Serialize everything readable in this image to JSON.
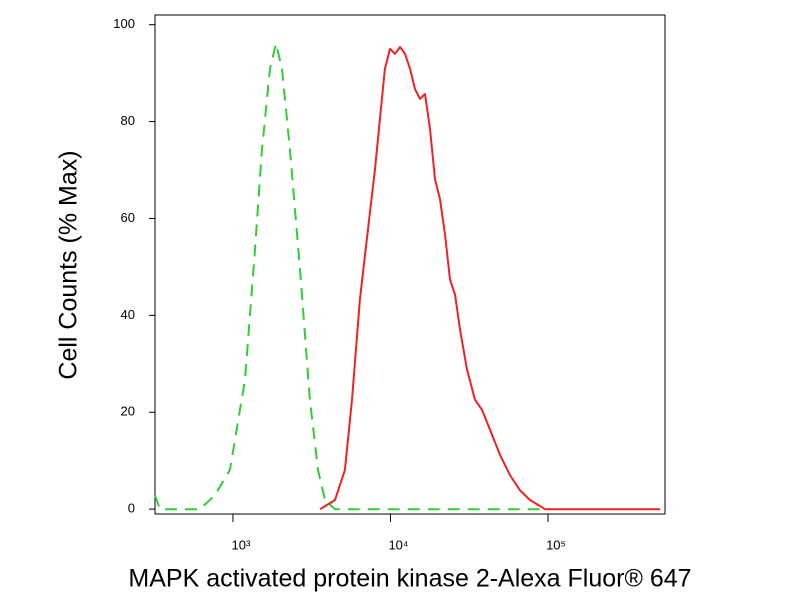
{
  "chart_data": {
    "type": "line",
    "xlabel": "MAPK activated protein kinase 2-Alexa Fluor® 647",
    "ylabel": "Cell Counts (% Max)",
    "xscale": "log",
    "xlim": [
      320,
      553000
    ],
    "ylim": [
      -1,
      102
    ],
    "xticks": [
      {
        "value": 1000,
        "label": "10³"
      },
      {
        "value": 10000,
        "label": "10⁴"
      },
      {
        "value": 100000,
        "label": "10⁵"
      }
    ],
    "yticks": [
      0,
      20,
      40,
      60,
      80,
      100
    ],
    "series": [
      {
        "color": "#33cc33",
        "linestyle": "dashed",
        "x": [
          320,
          344,
          617,
          769,
          957,
          1192,
          1380,
          1528,
          1718,
          1876,
          2048,
          2300,
          2663,
          3080,
          3467,
          3838,
          4443,
          103000
        ],
        "values": [
          2.9,
          0,
          0,
          2.9,
          8.1,
          26.7,
          53.6,
          74.3,
          90.9,
          96.1,
          90.9,
          74.3,
          49.5,
          22.6,
          8.1,
          1.9,
          0,
          0
        ]
      },
      {
        "color": "#ee2222",
        "linestyle": "solid",
        "x": [
          3567,
          4443,
          5140,
          5700,
          6400,
          7200,
          7970,
          8570,
          9220,
          9930,
          10690,
          11490,
          12370,
          13300,
          14320,
          15390,
          16570,
          17820,
          19180,
          20620,
          22180,
          23870,
          25680,
          27620,
          30620,
          34420,
          38120,
          42850,
          49570,
          57410,
          66370,
          76900,
          95700,
          514000
        ],
        "values": [
          0,
          1.9,
          8.1,
          22.6,
          43.3,
          57.8,
          70.2,
          80.5,
          90.9,
          95.0,
          94.0,
          95.4,
          94.0,
          90.9,
          86.7,
          84.7,
          85.7,
          78.5,
          68.1,
          64.0,
          56.7,
          47.4,
          44.3,
          37.1,
          28.8,
          22.6,
          20.5,
          16.4,
          11.2,
          7.0,
          3.9,
          1.9,
          0,
          0
        ]
      }
    ]
  }
}
